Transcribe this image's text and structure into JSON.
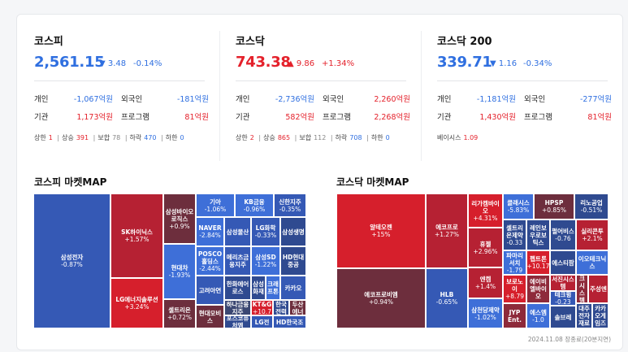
{
  "indices": [
    {
      "name": "코스피",
      "value": "2,561.15",
      "arrow": "▼",
      "change": "3.48",
      "pct": "-0.14%",
      "dir": "down",
      "r1": {
        "l1": "개인",
        "v1": "-1,067억원",
        "l2": "외국인",
        "v2": "-181억원"
      },
      "r2": {
        "l1": "기관",
        "v1": "1,173억원",
        "l2": "프로그램",
        "v2": "81억원"
      },
      "stats": {
        "a": "상한",
        "av": "1",
        "b": "상승",
        "bv": "391",
        "c": "보합",
        "cv": "78",
        "d": "하락",
        "dv": "470",
        "e": "하한",
        "ev": "0"
      }
    },
    {
      "name": "코스닥",
      "value": "743.38",
      "arrow": "▲",
      "change": "9.86",
      "pct": "+1.34%",
      "dir": "up",
      "r1": {
        "l1": "개인",
        "v1": "-2,736억원",
        "l2": "외국인",
        "v2": "2,260억원"
      },
      "r2": {
        "l1": "기관",
        "v1": "582억원",
        "l2": "프로그램",
        "v2": "2,268억원"
      },
      "stats": {
        "a": "상한",
        "av": "2",
        "b": "상승",
        "bv": "865",
        "c": "보합",
        "cv": "112",
        "d": "하락",
        "dv": "708",
        "e": "하한",
        "ev": "0"
      }
    },
    {
      "name": "코스닥 200",
      "value": "339.71",
      "arrow": "▼",
      "change": "1.16",
      "pct": "-0.34%",
      "dir": "down",
      "r1": {
        "l1": "개인",
        "v1": "-1,181억원",
        "l2": "외국인",
        "v2": "-277억원"
      },
      "r2": {
        "l1": "기관",
        "v1": "1,430억원",
        "l2": "프로그램",
        "v2": "81억원"
      },
      "stats": {
        "a": "베이시스",
        "av": "1.09"
      }
    }
  ],
  "maps": {
    "kospi_title": "코스피 마켓MAP",
    "kosdaq_title": "코스닥 마켓MAP",
    "kospi": [
      {
        "n": "삼성전자",
        "v": "-0.87%",
        "c": "B2"
      },
      {
        "n": "SK하이닉스",
        "v": "+1.57%",
        "c": "R2"
      },
      {
        "n": "LG에너지솔루션",
        "v": "+3.24%",
        "c": "R1"
      },
      {
        "n": "삼성바이오로직스",
        "v": "+0.9%",
        "c": "R4"
      },
      {
        "n": "현대차",
        "v": "-1.93%",
        "c": "B1"
      },
      {
        "n": "셀트리온",
        "v": "+0.72%",
        "c": "R4"
      },
      {
        "n": "기아",
        "v": "-1.06%",
        "c": "B1"
      },
      {
        "n": "KB금융",
        "v": "-0.96%",
        "c": "B1"
      },
      {
        "n": "신한지주",
        "v": "-0.35%",
        "c": "B2"
      },
      {
        "n": "NAVER",
        "v": "-2.84%",
        "c": "B1"
      },
      {
        "n": "삼성물산",
        "v": "",
        "c": "B2"
      },
      {
        "n": "LG화학",
        "v": "-0.33%",
        "c": "B2"
      },
      {
        "n": "삼성생명",
        "v": "",
        "c": "B3"
      },
      {
        "n": "POSCO홀딩스",
        "v": "-2.44%",
        "c": "B1"
      },
      {
        "n": "메리츠금융지주",
        "v": "",
        "c": "B2"
      },
      {
        "n": "삼성SD",
        "v": "-1.22%",
        "c": "B1"
      },
      {
        "n": "HD현대중공",
        "v": "",
        "c": "B3"
      },
      {
        "n": "한화에어로스",
        "v": "",
        "c": "B3"
      },
      {
        "n": "삼성화재",
        "v": "",
        "c": "B3"
      },
      {
        "n": "크래프톤",
        "v": "",
        "c": "B1"
      },
      {
        "n": "카카오",
        "v": "",
        "c": "B2"
      },
      {
        "n": "고려아연",
        "v": "",
        "c": "B2"
      },
      {
        "n": "하나금융지주",
        "v": "",
        "c": "B4"
      },
      {
        "n": "KT&G",
        "v": "+10.7",
        "c": "R1"
      },
      {
        "n": "한국전력",
        "v": "",
        "c": "B3"
      },
      {
        "n": "두산에너",
        "v": "",
        "c": "R4"
      },
      {
        "n": "현대모비스",
        "v": "",
        "c": "R4"
      },
      {
        "n": "포스코퓨처엠",
        "v": "",
        "c": "B3"
      },
      {
        "n": "LG전",
        "v": "",
        "c": "B2"
      },
      {
        "n": "HD한국조",
        "v": "",
        "c": "B2"
      }
    ],
    "kosdaq": [
      {
        "n": "알테오젠",
        "v": "+15%",
        "c": "R1"
      },
      {
        "n": "에코프로비엠",
        "v": "+0.94%",
        "c": "R4"
      },
      {
        "n": "에코프로",
        "v": "+1.27%",
        "c": "R2"
      },
      {
        "n": "HLB",
        "v": "-0.65%",
        "c": "B2"
      },
      {
        "n": "리가켐바이오",
        "v": "+4.31%",
        "c": "R1"
      },
      {
        "n": "휴젤",
        "v": "+2.96%",
        "c": "R2"
      },
      {
        "n": "엔켐",
        "v": "+1.4%",
        "c": "R2"
      },
      {
        "n": "삼천당제약",
        "v": "-1.02%",
        "c": "B1"
      },
      {
        "n": "클래시스",
        "v": "-5.83%",
        "c": "B1"
      },
      {
        "n": "HPSP",
        "v": "+0.85%",
        "c": "R4"
      },
      {
        "n": "리노공업",
        "v": "-0.51%",
        "c": "B3"
      },
      {
        "n": "셀트리온제약",
        "v": "-0.33",
        "c": "B3"
      },
      {
        "n": "레인보우로보틱스",
        "v": "",
        "c": "B3"
      },
      {
        "n": "펄어비스",
        "v": "-0.76",
        "c": "B3"
      },
      {
        "n": "실리콘투",
        "v": "+2.1%",
        "c": "R2"
      },
      {
        "n": "파마리서치",
        "v": "-1.79",
        "c": "B1"
      },
      {
        "n": "펩트론",
        "v": "+10.17",
        "c": "R1"
      },
      {
        "n": "에스티팜",
        "v": "",
        "c": "B3"
      },
      {
        "n": "이오테크닉스",
        "v": "",
        "c": "B1"
      },
      {
        "n": "보로노이",
        "v": "+8.79",
        "c": "R1"
      },
      {
        "n": "에이비엘바이오",
        "v": "",
        "c": "R3"
      },
      {
        "n": "서진시스템",
        "v": "",
        "c": "R2"
      },
      {
        "n": "파크시스템스",
        "v": "",
        "c": "R3"
      },
      {
        "n": "주성엔",
        "v": "",
        "c": "R2"
      },
      {
        "n": "테크윙",
        "v": "-0.23",
        "c": "B2"
      },
      {
        "n": "JYP Ent.",
        "v": "",
        "c": "R3"
      },
      {
        "n": "에스엠",
        "v": "-1.0",
        "c": "B1"
      },
      {
        "n": "솔브레",
        "v": "",
        "c": "B3"
      },
      {
        "n": "대주전자재료",
        "v": "",
        "c": "B3"
      },
      {
        "n": "카카오게임즈",
        "v": "",
        "c": "B3"
      }
    ]
  },
  "footer": "2024.11.08 장종료(20분지연)"
}
